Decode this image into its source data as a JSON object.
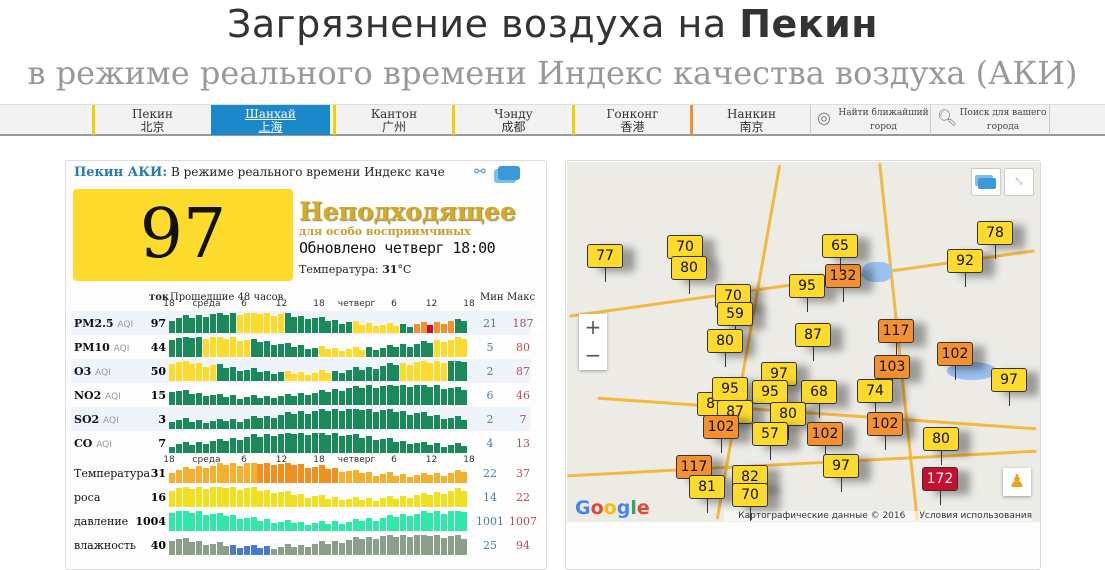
{
  "header": {
    "title_prefix": "Загрязнение воздуха на ",
    "title_city": "Пекин",
    "subtitle": "в режиме реального времени Индекс качества воздуха (АКИ)"
  },
  "nav": {
    "cities": [
      {
        "ru": "Пекин",
        "cn": "北京"
      },
      {
        "ru": "Шанхай",
        "cn": "上海"
      },
      {
        "ru": "Кантон",
        "cn": "广州"
      },
      {
        "ru": "Чэнду",
        "cn": "成都"
      },
      {
        "ru": "Гонконг",
        "cn": "香港"
      },
      {
        "ru": "Нанкин",
        "cn": "南京"
      }
    ],
    "active": "Шанхай",
    "nearest_1": "Найти ближайший",
    "nearest_2": "город",
    "search_1": "Поиск для вашего",
    "search_2": "города"
  },
  "panel": {
    "city_label": "Пекин АКИ:",
    "header_text": "В режиме реального времени Индекс качества возд",
    "aqi": "97",
    "aqi_color": "#fcdb2c",
    "level": "Неподходящее",
    "level_sub": "для особо восприимчивых",
    "updated": "Обновлено четверг 18:00",
    "temp_label": "Температура: ",
    "temp_value": "31",
    "temp_unit": "°C"
  },
  "graph": {
    "cur_header": "ток",
    "hist_header": "Прошедшие 48 часов",
    "min_header": "Мин",
    "max_header": "Макс",
    "axis": [
      "18",
      "среда",
      "6",
      "12",
      "18",
      "четверг",
      "6",
      "12",
      "18"
    ],
    "rows": [
      {
        "label": "PM2.5",
        "unit": "AQI",
        "cur": "97",
        "min": "21",
        "max": "187"
      },
      {
        "label": "PM10",
        "unit": "AQI",
        "cur": "44",
        "min": "5",
        "max": "80"
      },
      {
        "label": "O3",
        "unit": "AQI",
        "cur": "50",
        "min": "2",
        "max": "87"
      },
      {
        "label": "NO2",
        "unit": "AQI",
        "cur": "15",
        "min": "6",
        "max": "46"
      },
      {
        "label": "SO2",
        "unit": "AQI",
        "cur": "3",
        "min": "2",
        "max": "7"
      },
      {
        "label": "CO",
        "unit": "AQI",
        "cur": "7",
        "min": "4",
        "max": "13"
      },
      {
        "label": "Температура",
        "unit": "",
        "cur": "31",
        "min": "22",
        "max": "37"
      },
      {
        "label": "роса",
        "unit": "",
        "cur": "16",
        "min": "14",
        "max": "22"
      },
      {
        "label": "давление",
        "unit": "",
        "cur": "1004",
        "min": "1001",
        "max": "1007"
      },
      {
        "label": "влажность",
        "unit": "",
        "cur": "40",
        "min": "25",
        "max": "94"
      }
    ]
  },
  "map": {
    "markers": [
      "77",
      "70",
      "80",
      "70",
      "59",
      "95",
      "132",
      "65",
      "92",
      "78",
      "80",
      "87",
      "117",
      "102",
      "103",
      "97",
      "87",
      "95",
      "97",
      "95",
      "68",
      "74",
      "87",
      "80",
      "102",
      "57",
      "102",
      "102",
      "80",
      "117",
      "81",
      "82",
      "70",
      "97",
      "172"
    ],
    "colors": {
      "moderate": "#fcdb2c",
      "unhealthy_sensitive": "#f39131",
      "unhealthy": "#c8102e"
    },
    "google": "Google",
    "map_data": "Картографические данные © 2016",
    "terms": "Условия использования",
    "zoom_in": "+",
    "zoom_out": "−"
  }
}
